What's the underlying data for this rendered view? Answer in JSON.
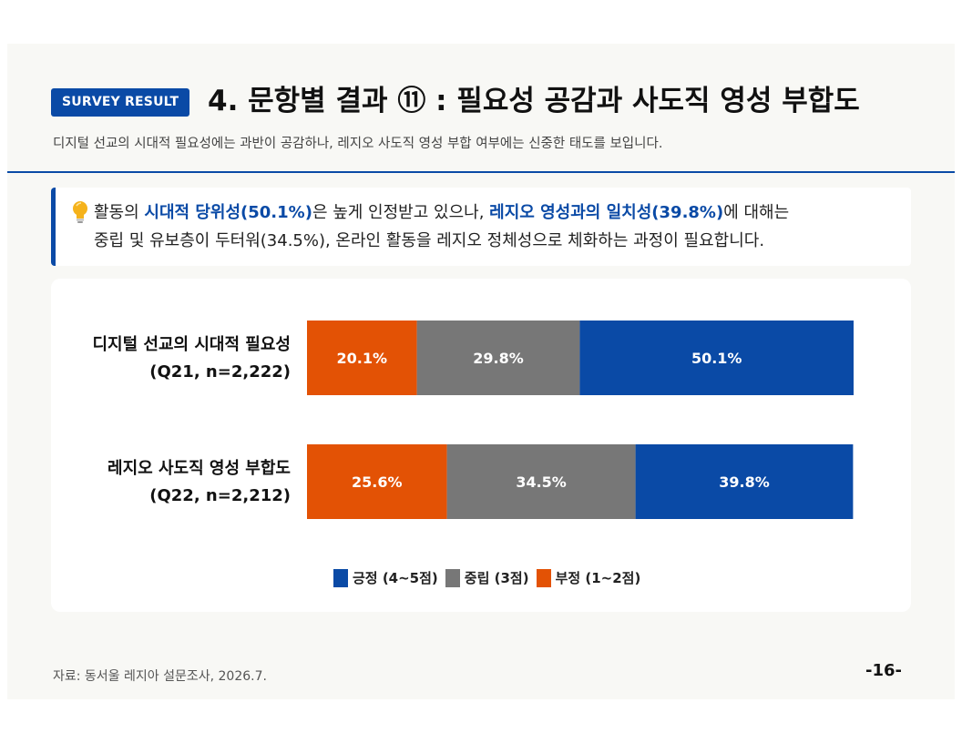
{
  "header": {
    "badge": "SURVEY RESULT",
    "title": "4. 문항별 결과 ⑪ : 필요성 공감과 사도직 영성 부합도",
    "subtitle": "디지털 선교의 시대적 필요성에는 과반이 공감하나, 레지오 사도직 영성 부합 여부에는 신중한 태도를 보입니다."
  },
  "callout": {
    "icon": "lightbulb-icon",
    "line1": [
      {
        "text": "활동의 ",
        "hl": false
      },
      {
        "text": "시대적 당위성(50.1%)",
        "hl": true
      },
      {
        "text": "은 높게 인정받고 있으나, ",
        "hl": false
      },
      {
        "text": "레지오 영성과의 일치성(39.8%)",
        "hl": true
      },
      {
        "text": "에 대해는",
        "hl": false
      }
    ],
    "line2": "중립 및 유보층이 두터워(34.5%), 온라인 활동을 레지오 정체성으로 체화하는 과정이 필요합니다.",
    "accent_color": "#0a4aa6"
  },
  "chart_data": {
    "type": "bar",
    "orientation": "horizontal",
    "stacked": true,
    "percent_stacked": true,
    "categories": [
      [
        "디지털 선교의 시대적 필요성",
        "(Q21, n=2,222)"
      ],
      [
        "레지오 사도직 영성 부합도",
        "(Q22, n=2,212)"
      ]
    ],
    "series": [
      {
        "name": "부정 (1~2점)",
        "color": "#e35205",
        "values": [
          20.1,
          25.6
        ],
        "labels": [
          "20.1%",
          "25.6%"
        ]
      },
      {
        "name": "중립 (3점)",
        "color": "#777777",
        "values": [
          29.8,
          34.5
        ],
        "labels": [
          "29.8%",
          "34.5%"
        ]
      },
      {
        "name": "긍정 (4~5점)",
        "color": "#0a4aa6",
        "values": [
          50.1,
          39.8
        ],
        "labels": [
          "50.1%",
          "39.8%"
        ]
      }
    ],
    "legend_order": [
      "긍정 (4~5점)",
      "중립 (3점)",
      "부정 (1~2점)"
    ],
    "legend_position": "bottom",
    "grid": false
  },
  "footer": {
    "source": "자료: 동서울 레지아 설문조사, 2026.7.",
    "page": "-16-"
  }
}
